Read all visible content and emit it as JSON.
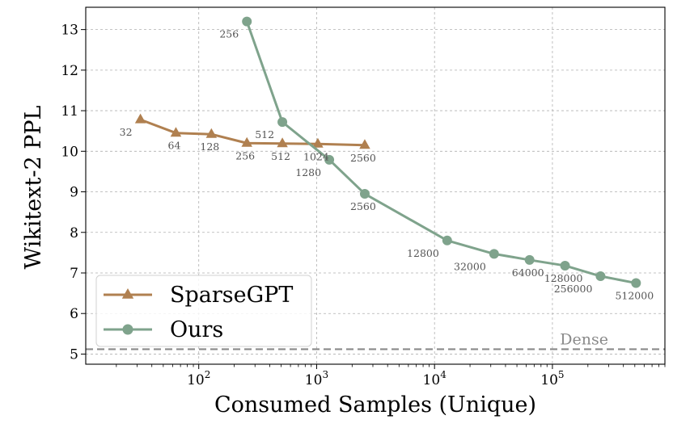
{
  "chart_data": {
    "type": "line",
    "xlabel": "Consumed Samples (Unique)",
    "ylabel": "Wikitext-2 PPL",
    "xscale": "log",
    "xlim": [
      11,
      900000
    ],
    "ylim": [
      4.75,
      13.55
    ],
    "grid": true,
    "legend": "bottom-left",
    "x_ticks": [
      {
        "value": 100,
        "base": "10",
        "exp": "2"
      },
      {
        "value": 1000,
        "base": "10",
        "exp": "3"
      },
      {
        "value": 10000,
        "base": "10",
        "exp": "4"
      },
      {
        "value": 100000,
        "base": "10",
        "exp": "5"
      }
    ],
    "y_ticks": [
      {
        "value": 5,
        "label": "5"
      },
      {
        "value": 6,
        "label": "6"
      },
      {
        "value": 7,
        "label": "7"
      },
      {
        "value": 8,
        "label": "8"
      },
      {
        "value": 9,
        "label": "9"
      },
      {
        "value": 10,
        "label": "10"
      },
      {
        "value": 11,
        "label": "11"
      },
      {
        "value": 12,
        "label": "12"
      },
      {
        "value": 13,
        "label": "13"
      }
    ],
    "series": [
      {
        "name": "SparseGPT",
        "marker": "triangle",
        "color": "#b08050",
        "x": [
          32,
          64,
          128,
          256,
          512,
          1024,
          2560
        ],
        "y": [
          10.78,
          10.45,
          10.42,
          10.2,
          10.19,
          10.18,
          10.15
        ],
        "labels": [
          "32",
          "64",
          "128",
          "256",
          "512",
          "1024",
          "2560"
        ],
        "label_pos": [
          "lb",
          "b",
          "b",
          "b",
          "b",
          "b",
          "b"
        ]
      },
      {
        "name": "Ours",
        "marker": "circle",
        "color": "#7fa38c",
        "x": [
          256,
          512,
          1280,
          2560,
          12800,
          32000,
          64000,
          128000,
          256000,
          512000
        ],
        "y": [
          13.2,
          10.72,
          9.79,
          8.95,
          7.8,
          7.47,
          7.32,
          7.18,
          6.92,
          6.75
        ],
        "labels": [
          "256",
          "512",
          "1280",
          "2560",
          "12800",
          "32000",
          "64000",
          "128000",
          "256000",
          "512000"
        ],
        "label_pos": [
          "lb",
          "lb",
          "lb",
          "b",
          "lb",
          "lb",
          "b",
          "b",
          "lb",
          "b"
        ]
      }
    ],
    "reference_line": {
      "label": "Dense",
      "y": 5.12,
      "color": "#8a8a8a"
    }
  }
}
